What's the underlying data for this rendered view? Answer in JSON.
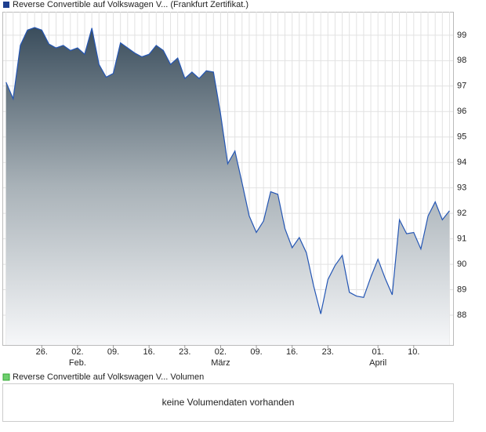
{
  "chart_data": {
    "type": "area",
    "legend": "Reverse Convertible auf Volkswagen V... (Frankfurt Zertifikat.)",
    "volume_legend": "Reverse Convertible auf Volkswagen V... Volumen",
    "volume_note": "keine Volumendaten vorhanden",
    "color": "#2456b4",
    "legend_color": "#1f3f8f",
    "volume_color": "#6fcf6f",
    "x": [
      0,
      1,
      2,
      3,
      4,
      5,
      6,
      7,
      8,
      9,
      10,
      11,
      12,
      13,
      14,
      15,
      16,
      17,
      18,
      19,
      20,
      21,
      22,
      23,
      24,
      25,
      26,
      27,
      28,
      29,
      30,
      31,
      32,
      33,
      34,
      35,
      36,
      37,
      38,
      39,
      40,
      41,
      42,
      43,
      44,
      45,
      46,
      47,
      48,
      49,
      50,
      51,
      52,
      53,
      54,
      55,
      56,
      57,
      58,
      59,
      60,
      61,
      62
    ],
    "values": [
      97.15,
      96.5,
      98.6,
      99.2,
      99.3,
      99.2,
      98.65,
      98.5,
      98.6,
      98.4,
      98.5,
      98.25,
      99.28,
      97.85,
      97.35,
      97.5,
      98.7,
      98.5,
      98.3,
      98.15,
      98.25,
      98.6,
      98.4,
      97.85,
      98.1,
      97.3,
      97.55,
      97.3,
      97.6,
      97.55,
      95.9,
      93.95,
      94.45,
      93.2,
      91.9,
      91.25,
      91.7,
      92.85,
      92.75,
      91.4,
      90.65,
      91.05,
      90.45,
      89.15,
      88.05,
      89.4,
      89.95,
      90.35,
      88.9,
      88.75,
      88.7,
      89.5,
      90.2,
      89.45,
      88.8,
      91.75,
      91.2,
      91.25,
      90.6,
      91.9,
      92.45,
      91.75,
      92.1
    ],
    "xlim": [
      -0.4,
      62.5
    ],
    "xticks": [
      {
        "value": 5,
        "label": "26."
      },
      {
        "value": 10,
        "label": "02."
      },
      {
        "value": 15,
        "label": "09."
      },
      {
        "value": 20,
        "label": "16."
      },
      {
        "value": 25,
        "label": "23."
      },
      {
        "value": 30,
        "label": "02."
      },
      {
        "value": 35,
        "label": "09."
      },
      {
        "value": 40,
        "label": "16."
      },
      {
        "value": 45,
        "label": "23."
      },
      {
        "value": 52,
        "label": "01."
      },
      {
        "value": 57,
        "label": "10."
      }
    ],
    "month_labels": [
      {
        "value": 10,
        "label": "Feb."
      },
      {
        "value": 30,
        "label": "März"
      },
      {
        "value": 52,
        "label": "April"
      }
    ],
    "ylim": [
      86.83,
      99.92
    ],
    "yticks": [
      88,
      89,
      90,
      91,
      92,
      93,
      94,
      95,
      96,
      97,
      98,
      99
    ],
    "grid": true
  }
}
